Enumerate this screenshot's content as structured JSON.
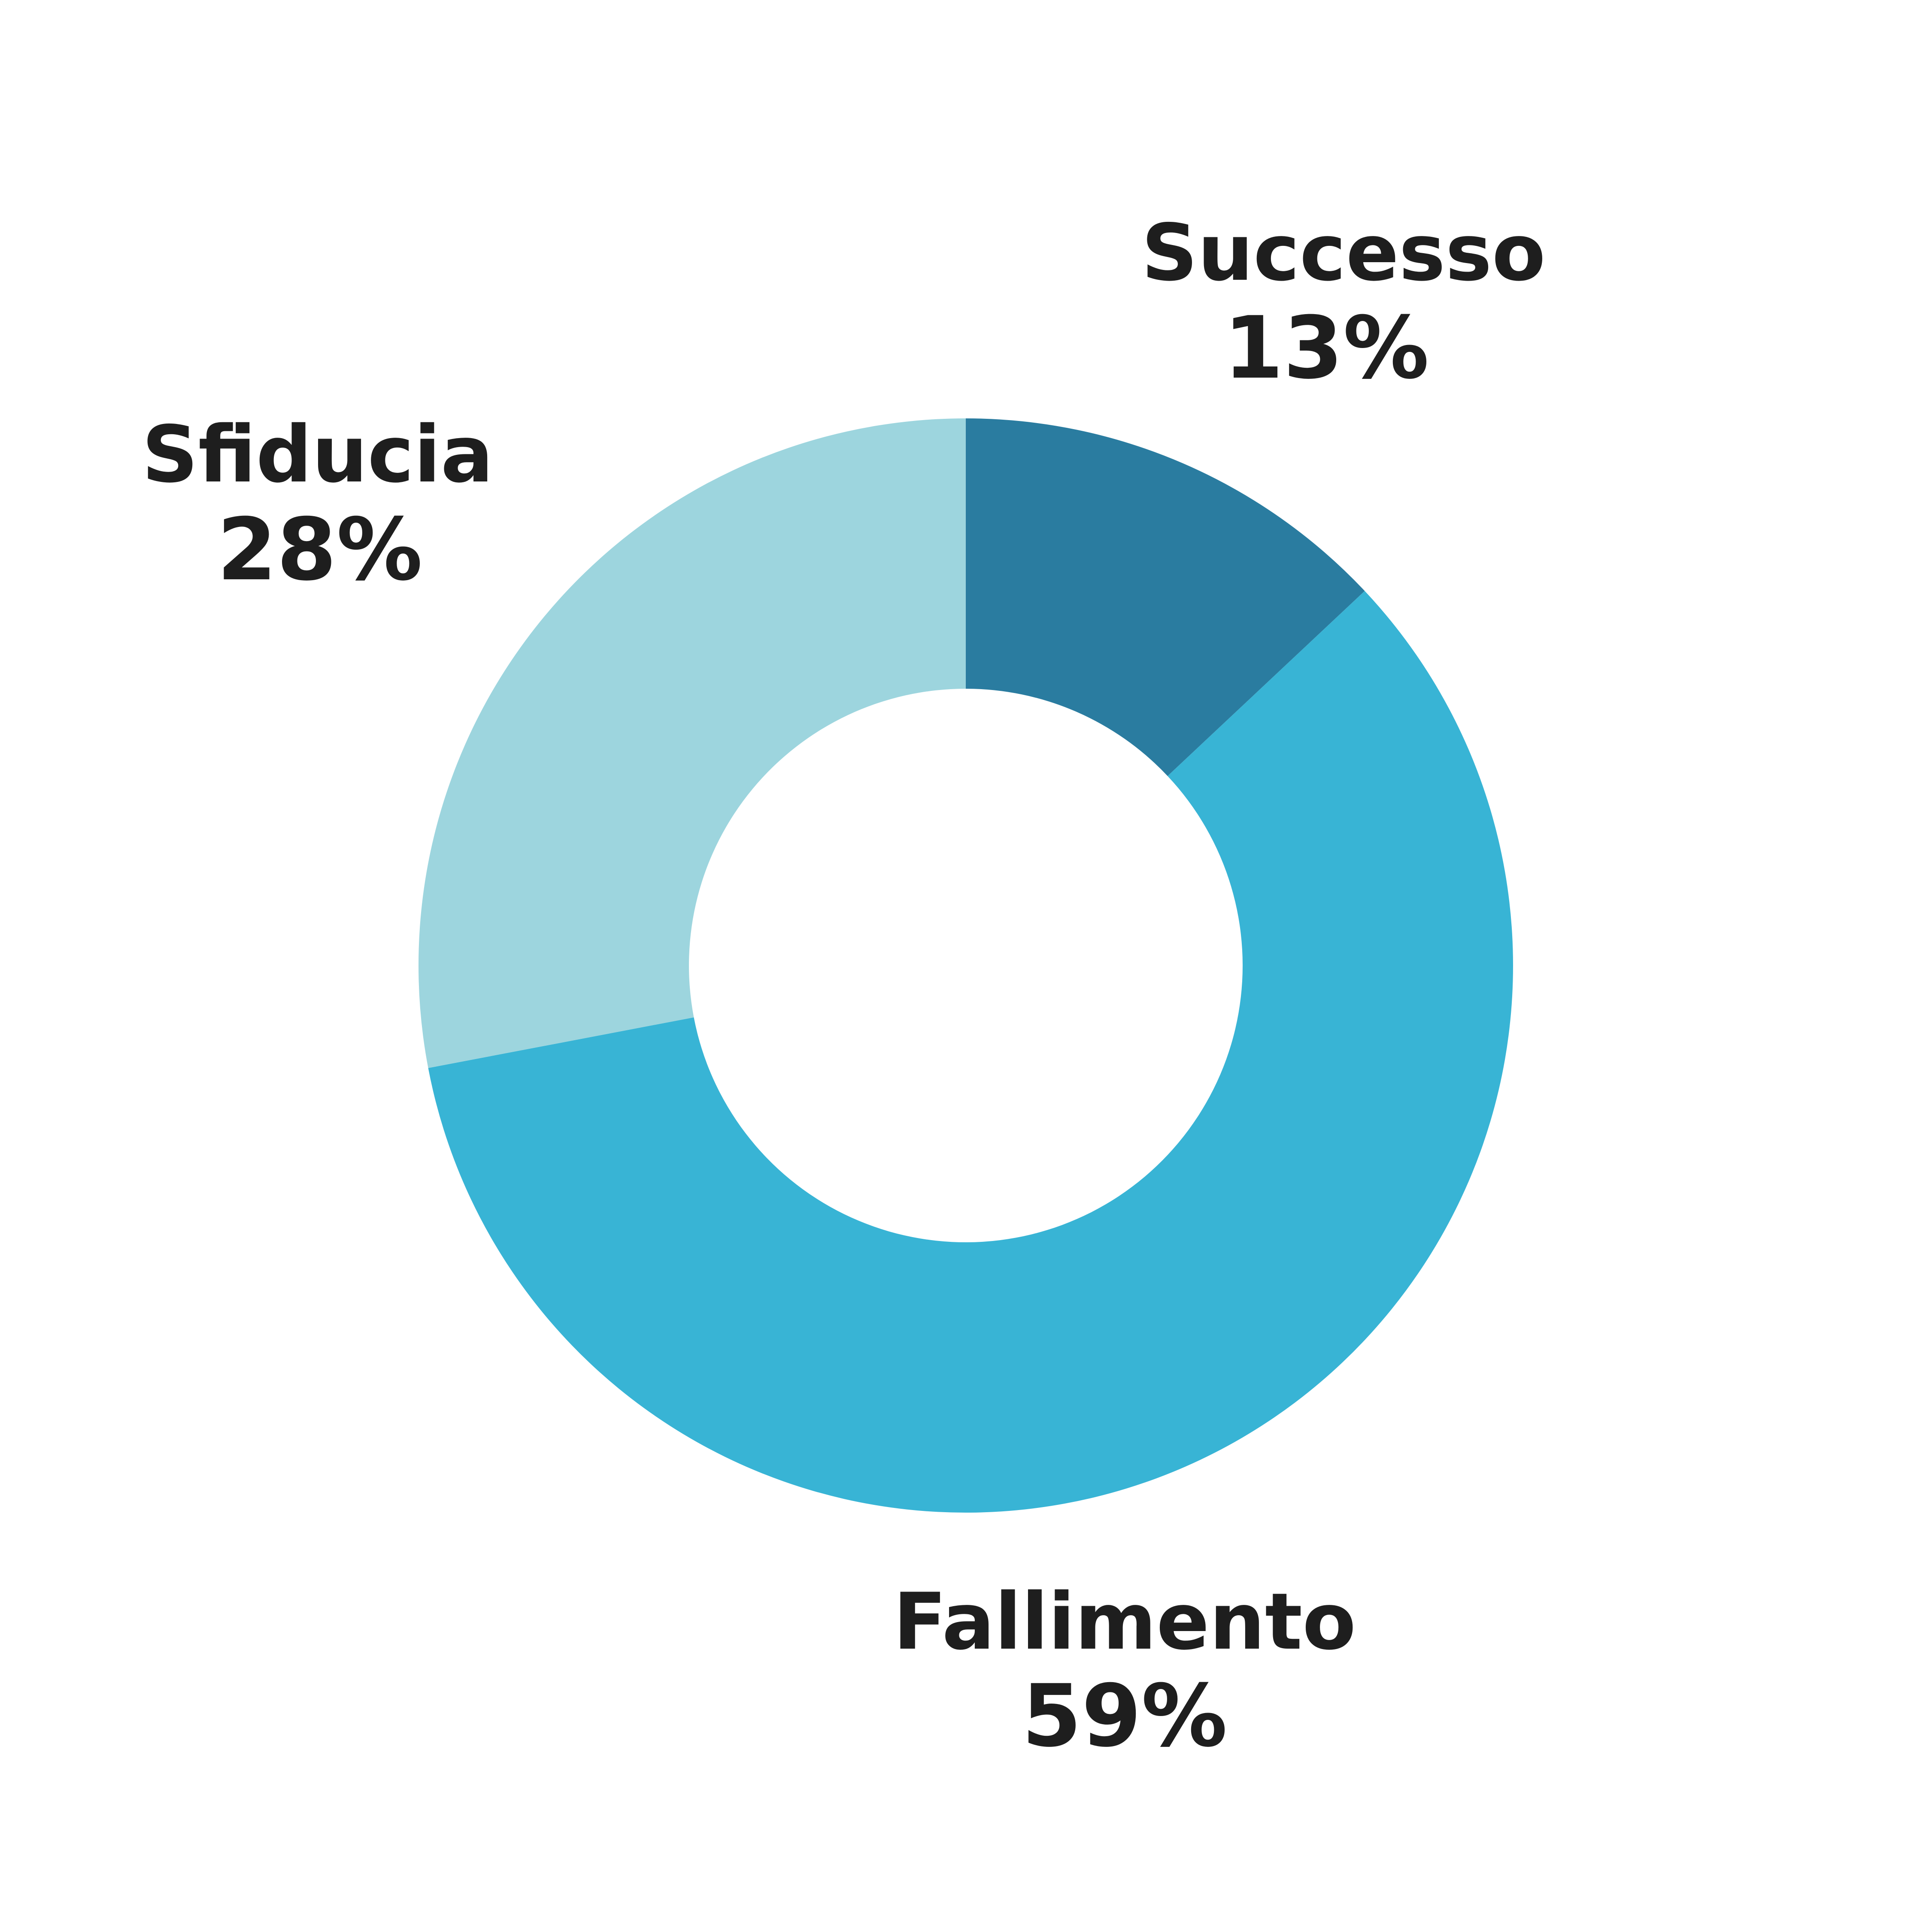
{
  "chart_data": {
    "type": "pie",
    "variant": "donut",
    "slices": [
      {
        "label": "Successo",
        "value": 13,
        "value_label": "13%",
        "color": "#2a7ca0"
      },
      {
        "label": "Fallimento",
        "value": 59,
        "value_label": "59%",
        "color": "#38b4d5"
      },
      {
        "label": "Sfiducia",
        "value": 28,
        "value_label": "28%",
        "color": "#9dd5de"
      }
    ],
    "start_angle": "12 o'clock",
    "direction": "clockwise",
    "legend": "none",
    "labels": "outside slices"
  }
}
